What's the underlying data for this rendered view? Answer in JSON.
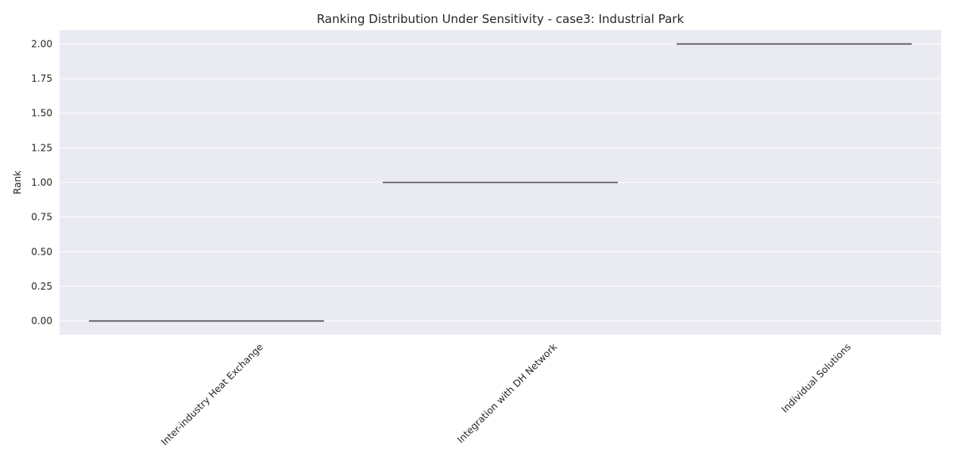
{
  "chart_data": {
    "type": "box",
    "title": "Ranking Distribution Under Sensitivity - case3: Industrial Park",
    "xlabel": "",
    "ylabel": "Rank",
    "categories": [
      "Inter-industry Heat Exchange",
      "Integration with DH Network",
      "Individual Solutions"
    ],
    "values": [
      0,
      1,
      2
    ],
    "yticks": [
      0.0,
      0.25,
      0.5,
      0.75,
      1.0,
      1.25,
      1.5,
      1.75,
      2.0
    ],
    "ytick_labels": [
      "0.00",
      "0.25",
      "0.50",
      "0.75",
      "1.00",
      "1.25",
      "1.50",
      "1.75",
      "2.00"
    ],
    "ylim": [
      -0.1,
      2.1
    ],
    "grid": true,
    "colors": {
      "background": "#eaeaf2",
      "grid": "#ffffff",
      "line": "#4d4d4d",
      "text": "#262626"
    }
  }
}
